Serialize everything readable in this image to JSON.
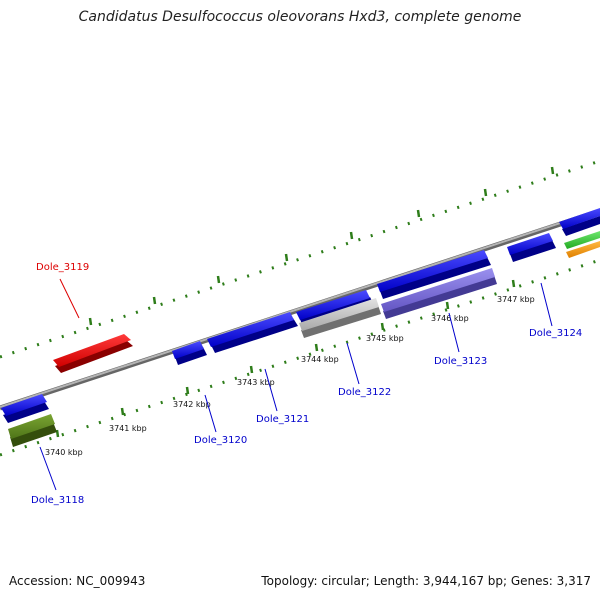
{
  "title": "Candidatus Desulfococcus oleovorans Hxd3, complete genome",
  "footer": {
    "accession": "Accession: NC_009943",
    "topology": "Topology: circular; Length: 3,944,167 bp; Genes: 3,317"
  },
  "scale_labels": [
    "3740 kbp",
    "3741 kbp",
    "3742 kbp",
    "3743 kbp",
    "3744 kbp",
    "3745 kbp",
    "3746 kbp",
    "3747 kbp"
  ],
  "gene_labels": [
    {
      "text": "Dole_3118",
      "color": "#0000cc"
    },
    {
      "text": "Dole_3119",
      "color": "#dd0000"
    },
    {
      "text": "Dole_3120",
      "color": "#0000cc"
    },
    {
      "text": "Dole_3121",
      "color": "#0000cc"
    },
    {
      "text": "Dole_3122",
      "color": "#0000cc"
    },
    {
      "text": "Dole_3123",
      "color": "#0000cc"
    },
    {
      "text": "Dole_3124",
      "color": "#0000cc"
    }
  ],
  "colors": {
    "backbone": "#8a8a8a",
    "tick": "#2e7d1a",
    "gene_blue": "#1010e0",
    "gene_red": "#e01010",
    "gene_olive": "#5e8a22",
    "gene_gray": "#c0c0c0",
    "gene_purple": "#7c6fd6",
    "gene_green": "#3cc83c",
    "gene_orange": "#f0960f"
  }
}
